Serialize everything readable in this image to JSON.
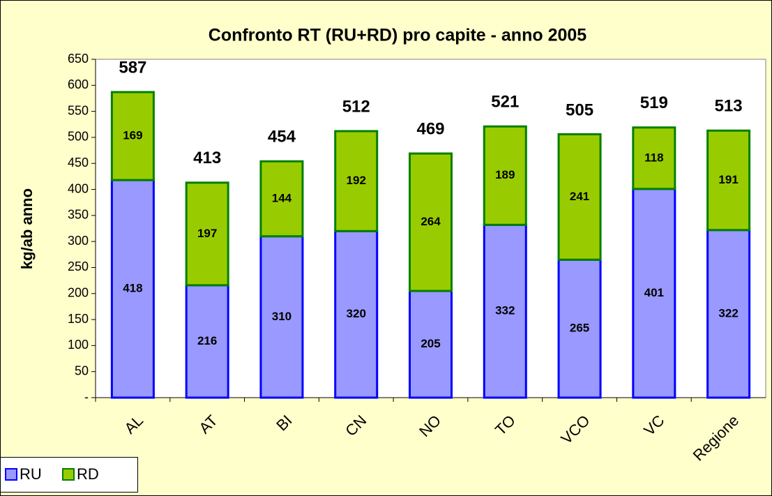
{
  "chart_data": {
    "type": "stacked_bar",
    "title": "Confronto RT (RU+RD) pro capite - anno 2005",
    "ylabel": "kg/ab anno",
    "categories": [
      "AL",
      "AT",
      "BI",
      "CN",
      "NO",
      "TO",
      "VCO",
      "VC",
      "Regione"
    ],
    "series": [
      {
        "name": "RU",
        "color": "#9999ff",
        "edgecolor": "#0000ff",
        "values": [
          418,
          216,
          310,
          320,
          205,
          332,
          265,
          401,
          322
        ]
      },
      {
        "name": "RD",
        "color": "#99cc00",
        "edgecolor": "#008000",
        "values": [
          169,
          197,
          144,
          192,
          264,
          189,
          241,
          118,
          191
        ]
      }
    ],
    "totals": [
      587,
      413,
      454,
      512,
      469,
      521,
      505,
      519,
      513
    ],
    "ylim": [
      0,
      650
    ],
    "yticks": [
      {
        "value": 0,
        "label": "-"
      },
      50,
      100,
      150,
      200,
      250,
      300,
      350,
      400,
      450,
      500,
      550,
      600,
      650
    ],
    "legend": "lower left"
  }
}
